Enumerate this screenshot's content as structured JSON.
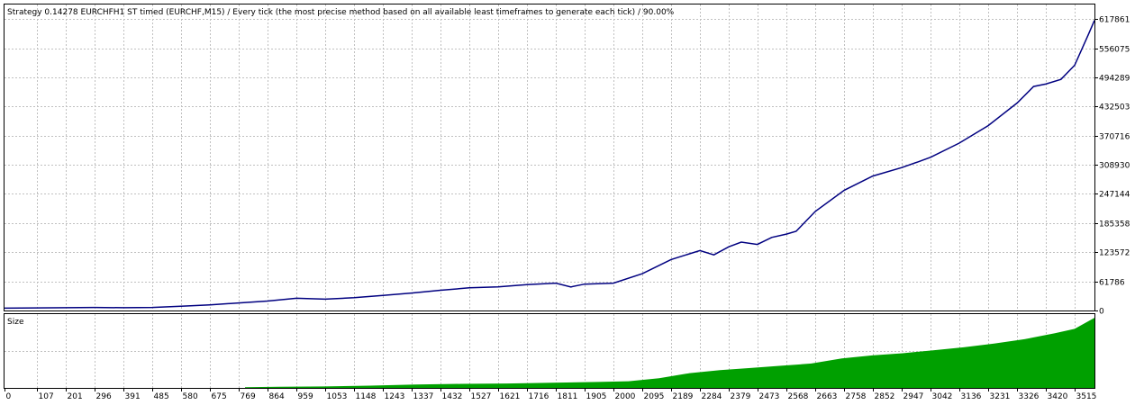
{
  "header": {
    "title": "Strategy 0.14278 EURCHFH1 ST timed (EURCHF,M15) / Every tick (the most precise method based on all available least timeframes to generate each tick) / 90.00%"
  },
  "colors": {
    "background": "#ffffff",
    "grid": "#c0c0c0",
    "balance_line": "#000080",
    "size_fill": "#00a000",
    "frame": "#000000"
  },
  "chart_data": [
    {
      "type": "line",
      "title": "Strategy 0.14278 EURCHFH1 ST timed (EURCHF,M15) / Every tick (the most precise method based on all available least timeframes to generate each tick) / 90.00%",
      "xlabel": "",
      "ylabel": "",
      "grid": true,
      "xlim": [
        0,
        3580
      ],
      "ylim": [
        0,
        648754
      ],
      "y_ticks": [
        "0",
        "61786",
        "123572",
        "185358",
        "247144",
        "308930",
        "370716",
        "432503",
        "494289",
        "556075",
        "617861"
      ],
      "y_tick_values": [
        0,
        61786,
        123572,
        185358,
        247144,
        308930,
        370716,
        432503,
        494289,
        556075,
        617861
      ],
      "series": [
        {
          "x": [
            0,
            107,
            201,
            296,
            391,
            485,
            580,
            675,
            769,
            864,
            959,
            1053,
            1148,
            1243,
            1337,
            1432,
            1527,
            1621,
            1716,
            1811,
            1860,
            1905,
            2000,
            2095,
            2189,
            2284,
            2330,
            2379,
            2420,
            2473,
            2520,
            2568,
            2600,
            2663,
            2758,
            2852,
            2947,
            3000,
            3042,
            3136,
            3231,
            3326,
            3380,
            3420,
            3470,
            3515,
            3560,
            3580
          ],
          "y": [
            5000,
            5500,
            6000,
            6500,
            6000,
            6500,
            9000,
            12000,
            16000,
            20000,
            26000,
            24000,
            27000,
            32000,
            37000,
            43000,
            48000,
            50000,
            55000,
            58000,
            50000,
            56000,
            58000,
            78000,
            108000,
            127000,
            118000,
            135000,
            145000,
            140000,
            155000,
            162000,
            168000,
            210000,
            255000,
            285000,
            303000,
            315000,
            325000,
            355000,
            392000,
            440000,
            475000,
            480000,
            490000,
            520000,
            585000,
            615000
          ]
        }
      ]
    },
    {
      "type": "area",
      "title": "Size",
      "xlabel": "",
      "ylabel": "",
      "grid": true,
      "xlim": [
        0,
        3580
      ],
      "ylim": [
        0,
        1
      ],
      "x_ticks": [
        "0",
        "107",
        "201",
        "296",
        "391",
        "485",
        "580",
        "675",
        "769",
        "864",
        "959",
        "1053",
        "1148",
        "1243",
        "1337",
        "1432",
        "1527",
        "1621",
        "1716",
        "1811",
        "1905",
        "2000",
        "2095",
        "2189",
        "2284",
        "2379",
        "2473",
        "2568",
        "2663",
        "2758",
        "2852",
        "2947",
        "3042",
        "3136",
        "3231",
        "3326",
        "3420",
        "3515"
      ],
      "x_tick_values": [
        0,
        107,
        201,
        296,
        391,
        485,
        580,
        675,
        769,
        864,
        959,
        1053,
        1148,
        1243,
        1337,
        1432,
        1527,
        1621,
        1716,
        1811,
        1905,
        2000,
        2095,
        2189,
        2284,
        2379,
        2473,
        2568,
        2663,
        2758,
        2852,
        2947,
        3042,
        3136,
        3231,
        3326,
        3420,
        3515
      ],
      "series": [
        {
          "x": [
            790,
            900,
            1050,
            1200,
            1350,
            1500,
            1650,
            1800,
            1950,
            2050,
            2150,
            2250,
            2350,
            2450,
            2550,
            2650,
            2750,
            2850,
            2950,
            3050,
            3150,
            3250,
            3350,
            3450,
            3515,
            3580
          ],
          "y": [
            0.01,
            0.015,
            0.02,
            0.03,
            0.045,
            0.055,
            0.06,
            0.07,
            0.08,
            0.09,
            0.13,
            0.2,
            0.24,
            0.27,
            0.3,
            0.33,
            0.4,
            0.44,
            0.47,
            0.51,
            0.55,
            0.6,
            0.66,
            0.74,
            0.8,
            0.95
          ]
        }
      ],
      "label": "Size"
    }
  ]
}
